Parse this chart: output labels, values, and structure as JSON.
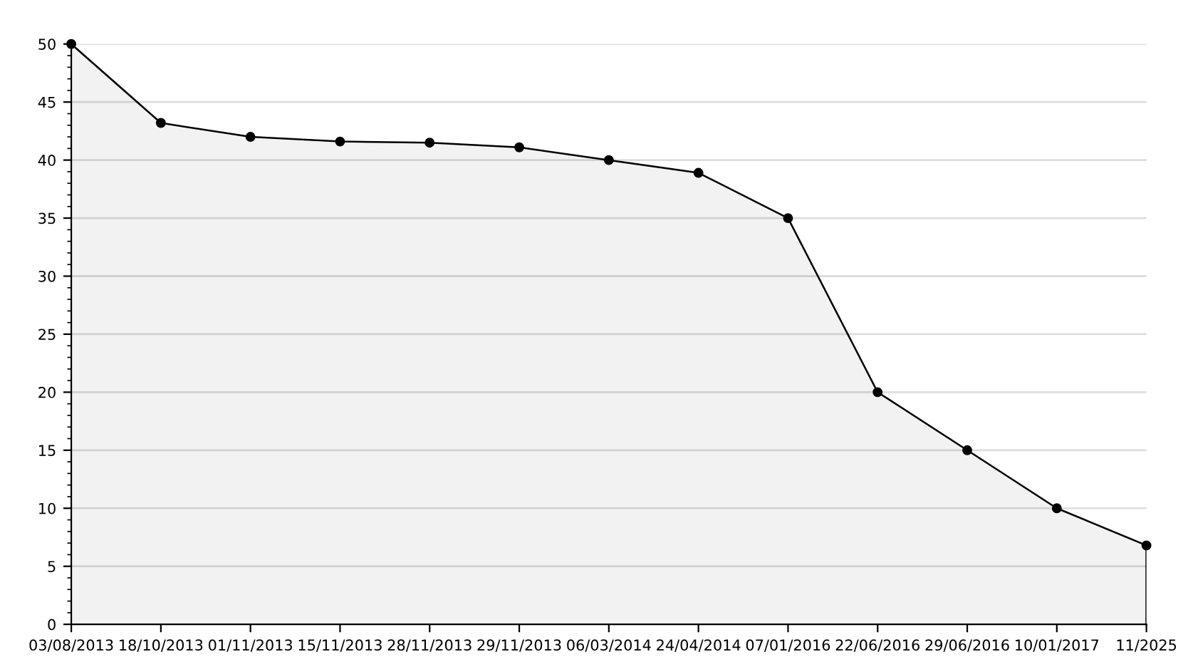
{
  "chart_data": {
    "type": "area",
    "categories": [
      "03/08/2013",
      "18/10/2013",
      "01/11/2013",
      "15/11/2013",
      "28/11/2013",
      "29/11/2013",
      "06/03/2014",
      "24/04/2014",
      "07/01/2016",
      "22/06/2016",
      "29/06/2016",
      "10/01/2017",
      "11/2025"
    ],
    "series": [
      {
        "color": "#000000",
        "values": [
          50,
          43.2,
          42,
          41.6,
          41.5,
          41.1,
          40,
          38.9,
          35,
          20,
          15,
          10,
          6.8
        ]
      }
    ],
    "ylim": [
      0,
      50
    ],
    "yticks": [
      0,
      5,
      10,
      15,
      20,
      25,
      30,
      35,
      40,
      45,
      50
    ],
    "grid": "y",
    "marker": "circle",
    "line_style": "solid",
    "legend": false
  }
}
